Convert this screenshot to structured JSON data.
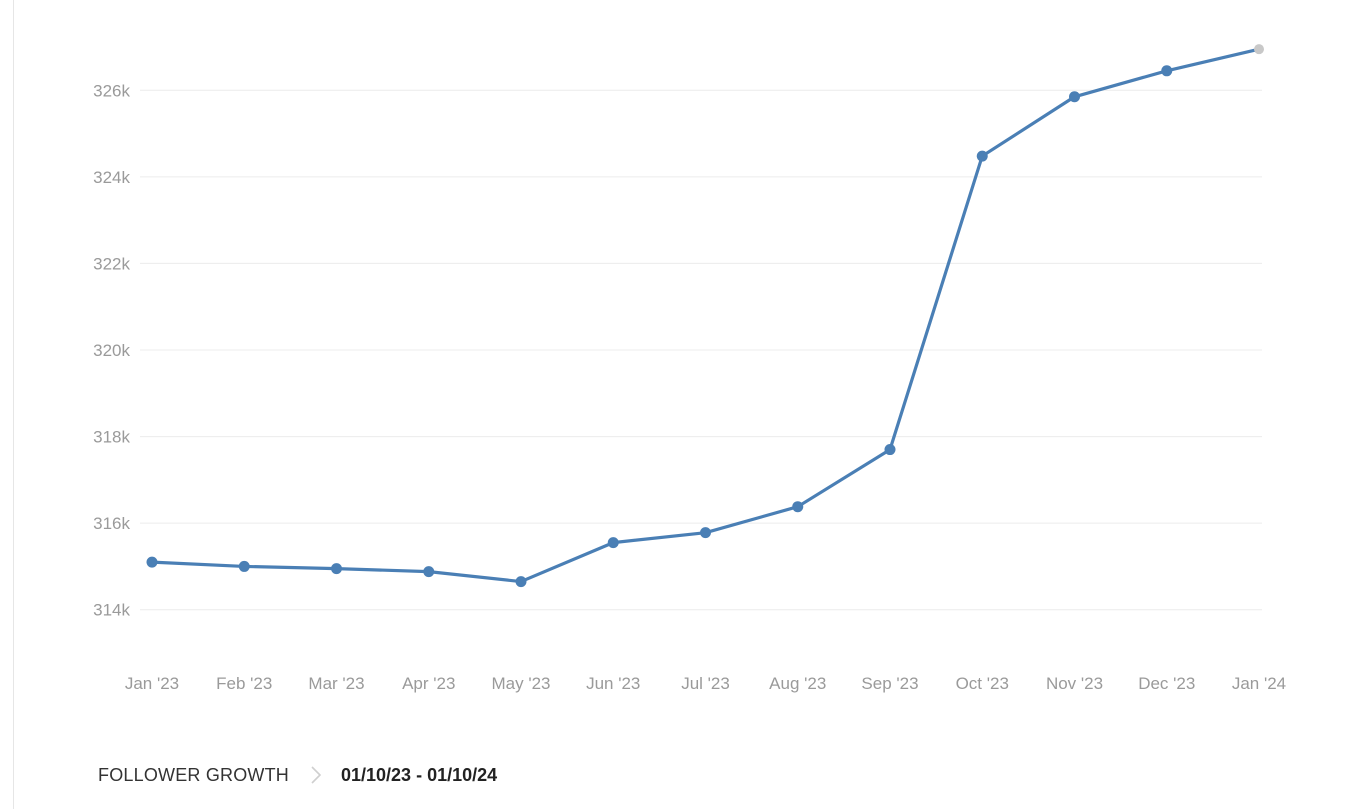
{
  "colors": {
    "line": "#4a7fb5",
    "point": "#4a7fb5",
    "last_point": "#c8c8c8",
    "grid": "#ececec",
    "tick": "#9a9a9a"
  },
  "footer": {
    "title": "FOLLOWER GROWTH",
    "separator_icon": "chevron-right-icon",
    "date_range": "01/10/23 - 01/10/24"
  },
  "chart_data": {
    "type": "line",
    "title": "",
    "xlabel": "",
    "ylabel": "",
    "categories": [
      "Jan '23",
      "Feb '23",
      "Mar '23",
      "Apr '23",
      "May '23",
      "Jun '23",
      "Jul '23",
      "Aug '23",
      "Sep '23",
      "Oct '23",
      "Nov '23",
      "Dec '23",
      "Jan '24"
    ],
    "series": [
      {
        "values": [
          315100,
          315000,
          314950,
          314880,
          314650,
          315550,
          315780,
          316380,
          317700,
          324480,
          325850,
          326450,
          326950
        ]
      }
    ],
    "yticks": [
      314000,
      316000,
      318000,
      320000,
      322000,
      324000,
      326000
    ],
    "ytick_labels": [
      "314k",
      "316k",
      "318k",
      "320k",
      "322k",
      "324k",
      "326k"
    ],
    "ylim": [
      313000,
      327000
    ],
    "grid": true,
    "legend": "none"
  }
}
